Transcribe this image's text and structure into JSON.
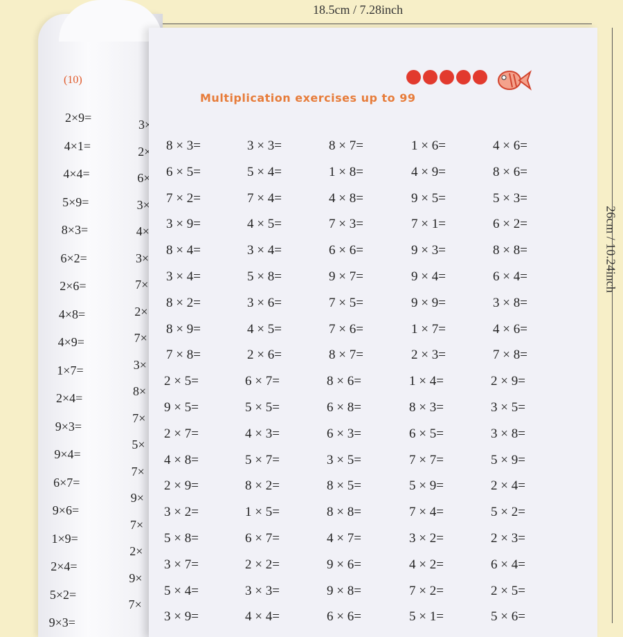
{
  "dimensions": {
    "width": "18.5cm / 7.28inch",
    "height": "26cm / 10.24inch"
  },
  "left_page": {
    "label": "(10)",
    "column1": [
      "2×9=",
      "4×1=",
      "4×4=",
      "5×9=",
      "8×3=",
      "6×2=",
      "2×6=",
      "4×8=",
      "4×9=",
      "1×7=",
      "2×4=",
      "9×3=",
      "9×4=",
      "6×7=",
      "9×6=",
      "1×9=",
      "2×4=",
      "5×2=",
      "9×3="
    ],
    "column2": [
      "3×",
      "2×",
      "6×",
      "3×",
      "4×",
      "3×",
      "7×",
      "2×",
      "7×",
      "3×",
      "8×",
      "7×",
      "5×",
      "7×",
      "9×",
      "7×",
      "2×",
      "9×",
      "7×"
    ]
  },
  "main_page": {
    "title": "Multiplication exercises up to 99",
    "accent_color": "#e77c3a",
    "progress_dots": 5,
    "rows": [
      [
        "8 × 3=",
        "3 × 3=",
        "8 × 7=",
        "1 × 6=",
        "4 × 6="
      ],
      [
        "6 × 5=",
        "5 × 4=",
        "1 × 8=",
        "4 × 9=",
        "8 × 6="
      ],
      [
        "7 × 2=",
        "7 × 4=",
        "4 × 8=",
        "9 × 5=",
        "5 × 3="
      ],
      [
        "3 × 9=",
        "4 × 5=",
        "7 × 3=",
        "7 × 1=",
        "6 × 2="
      ],
      [
        "8 × 4=",
        "3 × 4=",
        "6 × 6=",
        "9 × 3=",
        "8 × 8="
      ],
      [
        "3 × 4=",
        "5 × 8=",
        "9 × 7=",
        "9 × 4=",
        "6 × 4="
      ],
      [
        "8 × 2=",
        "3 × 6=",
        "7 × 5=",
        "9 × 9=",
        "3 × 8="
      ],
      [
        "8 × 9=",
        "4 × 5=",
        "7 × 6=",
        "1 × 7=",
        "4 × 6="
      ],
      [
        "7 × 8=",
        "2 × 6=",
        "8 × 7=",
        "2 × 3=",
        "7 × 8="
      ],
      [
        "2 × 5=",
        "6 × 7=",
        "8 × 6=",
        "1 × 4=",
        "2 × 9="
      ],
      [
        "9 × 5=",
        "5 × 5=",
        "6 × 8=",
        "8 × 3=",
        "3 × 5="
      ],
      [
        "2 × 7=",
        "4 × 3=",
        "6 × 3=",
        "6 × 5=",
        "3 × 8="
      ],
      [
        "4 × 8=",
        "5 × 7=",
        "3 × 5=",
        "7 × 7=",
        "5 × 9="
      ],
      [
        "2 × 9=",
        "8 × 2=",
        "8 × 5=",
        "5 × 9=",
        "2 × 4="
      ],
      [
        "3 × 2=",
        "1 × 5=",
        "8 × 8=",
        "7 × 4=",
        "5 × 2="
      ],
      [
        "5 × 8=",
        "6 × 7=",
        "4 × 7=",
        "3 × 2=",
        "2 × 3="
      ],
      [
        "3 × 7=",
        "2 × 2=",
        "9 × 6=",
        "4 × 2=",
        "6 × 4="
      ],
      [
        "5 × 4=",
        "3 × 3=",
        "9 × 8=",
        "7 × 2=",
        "2 × 5="
      ],
      [
        "3 × 9=",
        "4 × 4=",
        "6 × 6=",
        "5 × 1=",
        "5 × 6="
      ]
    ]
  }
}
